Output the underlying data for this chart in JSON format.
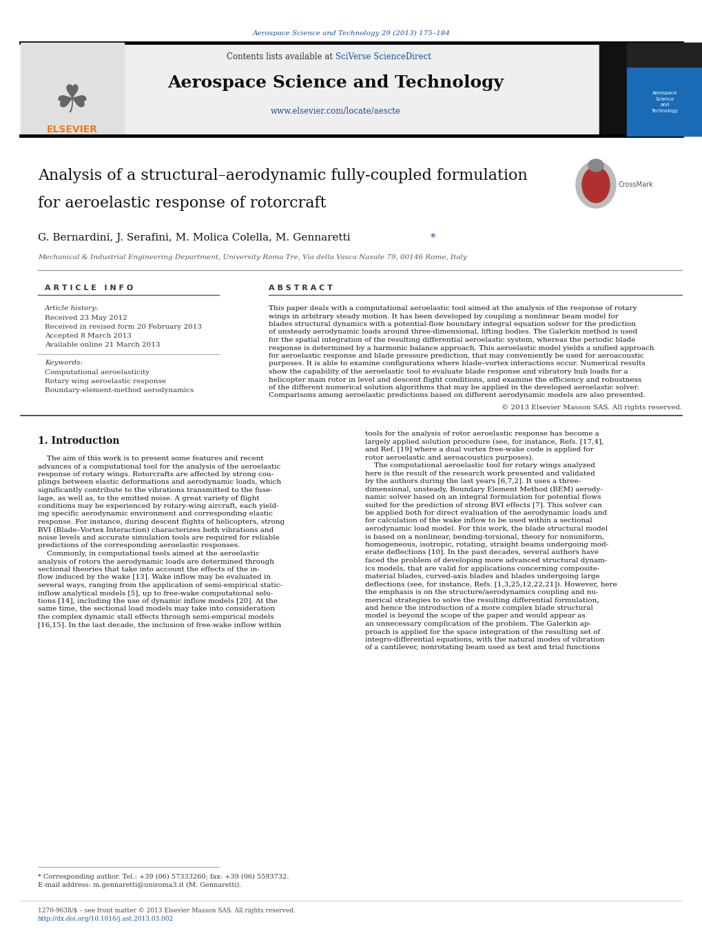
{
  "journal_ref": "Aerospace Science and Technology 29 (2013) 175–184",
  "journal_ref_color": "#1a4fa0",
  "journal_name": "Aerospace Science and Technology",
  "contents_text": "Contents lists available at ",
  "sciverse_text": "SciVerse ScienceDirect",
  "url_text": "www.elsevier.com/locate/aescte",
  "url_color": "#1a4fa0",
  "paper_title_line1": "Analysis of a structural–aerodynamic fully-coupled formulation",
  "paper_title_line2": "for aeroelastic response of rotorcraft",
  "authors_plain": "G. Bernardini, J. Serafini, M. Molica Colella, M. Gennaretti",
  "authors_star": " *",
  "affiliation": "Mechanical & Industrial Engineering Department, University Roma Tre, Via della Vasca Navale 79, 00146 Rome, Italy",
  "section_article_info": "A R T I C L E   I N F O",
  "section_abstract": "A B S T R A C T",
  "article_history_label": "Article history:",
  "received": "Received 23 May 2012",
  "received_revised": "Received in revised form 20 February 2013",
  "accepted": "Accepted 8 March 2013",
  "available": "Available online 21 March 2013",
  "keywords_label": "Keywords:",
  "keyword1": "Computational aeroelasticity",
  "keyword2": "Rotary wing aeroelastic response",
  "keyword3": "Boundary-element-method aerodynamics",
  "abstract_lines": [
    "This paper deals with a computational aeroelastic tool aimed at the analysis of the response of rotary",
    "wings in arbitrary steady motion. It has been developed by coupling a nonlinear beam model for",
    "blades structural dynamics with a potential-flow boundary integral equation solver for the prediction",
    "of unsteady aerodynamic loads around three-dimensional, lifting bodies. The Galerkin method is used",
    "for the spatial integration of the resulting differential aeroelastic system, whereas the periodic blade",
    "response is determined by a harmonic balance approach. This aeroelastic model yields a unified approach",
    "for aeroelastic response and blade pressure prediction, that may conveniently be used for aeroacoustic",
    "purposes. It is able to examine configurations where blade–vortex interactions occur. Numerical results",
    "show the capability of the aeroelastic tool to evaluate blade response and vibratory hub loads for a",
    "helicopter main rotor in level and descent flight conditions, and examine the efficiency and robustness",
    "of the different numerical solution algorithms that may be applied in the developed aeroelastic solver.",
    "Comparisons among aeroelastic predictions based on different aerodynamic models are also presented."
  ],
  "copyright_text": "© 2013 Elsevier Masson SAS. All rights reserved.",
  "intro_title": "1. Introduction",
  "intro_col1_lines": [
    "    The aim of this work is to present some features and recent",
    "advances of a computational tool for the analysis of the aeroelastic",
    "response of rotary wings. Rotorcrafts are affected by strong cou-",
    "plings between elastic deformations and aerodynamic loads, which",
    "significantly contribute to the vibrations transmitted to the fuse-",
    "lage, as well as, to the emitted noise. A great variety of flight",
    "conditions may be experienced by rotary-wing aircraft, each yield-",
    "ing specific aerodynamic environment and corresponding elastic",
    "response. For instance, during descent flights of helicopters, strong",
    "BVI (Blade–Vortex Interaction) characterizes both vibrations and",
    "noise levels and accurate simulation tools are required for reliable",
    "predictions of the corresponding aeroelastic responses.",
    "    Commonly, in computational tools aimed at the aeroelastic",
    "analysis of rotors the aerodynamic loads are determined through",
    "sectional theories that take into account the effects of the in-",
    "flow induced by the wake [13]. Wake inflow may be evaluated in",
    "several ways, ranging from the application of semi-empirical static-",
    "inflow analytical models [5], up to free-wake computational solu-",
    "tions [14], including the use of dynamic inflow models [20]. At the",
    "same time, the sectional load models may take into consideration",
    "the complex dynamic stall effects through semi-empirical models",
    "[16,15]. In the last decade, the inclusion of free-wake inflow within"
  ],
  "intro_col2_lines": [
    "tools for the analysis of rotor aeroelastic response has become a",
    "largely applied solution procedure (see, for instance, Refs. [17,4],",
    "and Ref. [19] where a dual vortex free-wake code is applied for",
    "rotor aeroelastic and aeroacoustics purposes).",
    "    The computational aeroelastic tool for rotary wings analyzed",
    "here is the result of the research work presented and validated",
    "by the authors during the last years [6,7,2]. It uses a three-",
    "dimensional, unsteady, Boundary Element Method (BEM) aerody-",
    "namic solver based on an integral formulation for potential flows",
    "suited for the prediction of strong BVI effects [7]. This solver can",
    "be applied both for direct evaluation of the aerodynamic loads and",
    "for calculation of the wake inflow to be used within a sectional",
    "aerodynamic load model. For this work, the blade structural model",
    "is based on a nonlinear, bending-torsional, theory for nonuniform,",
    "homogeneous, isotropic, rotating, straight beams undergoing mod-",
    "erate deflections [10]. In the past decades, several authors have",
    "faced the problem of developing more advanced structural dynam-",
    "ics models, that are valid for applications concerning composite-",
    "material blades, curved-axis blades and blades undergoing large",
    "deflections (see, for instance, Refs. [1,3,25,12,22,21]). However, here",
    "the emphasis is on the structure/aerodynamics coupling and nu-",
    "merical strategies to solve the resulting differential formulation,",
    "and hence the introduction of a more complex blade structural",
    "model is beyond the scope of the paper and would appear as",
    "an unnecessary complication of the problem. The Galerkin ap-",
    "proach is applied for the space integration of the resulting set of",
    "integro-differential equations, with the natural modes of vibration",
    "of a cantilever, nonrotating beam used as test and trial functions"
  ],
  "footnote_star": "* Corresponding author. Tel.: +39 (06) 57333260; fax: +39 (06) 5593732.",
  "footnote_email": "E-mail address: m.gennaretti@uniroma3.it (M. Gennaretti).",
  "footer_issn": "1270-9638/$ – see front matter © 2013 Elsevier Masson SAS. All rights reserved.",
  "footer_doi": "http://dx.doi.org/10.1016/j.ast.2013.03.002",
  "background_color": "#ffffff",
  "elsevier_orange": "#f47920",
  "link_blue": "#1a4fa0",
  "sidebar_dark": "#111111",
  "sidebar_blue": "#1a6bb5"
}
